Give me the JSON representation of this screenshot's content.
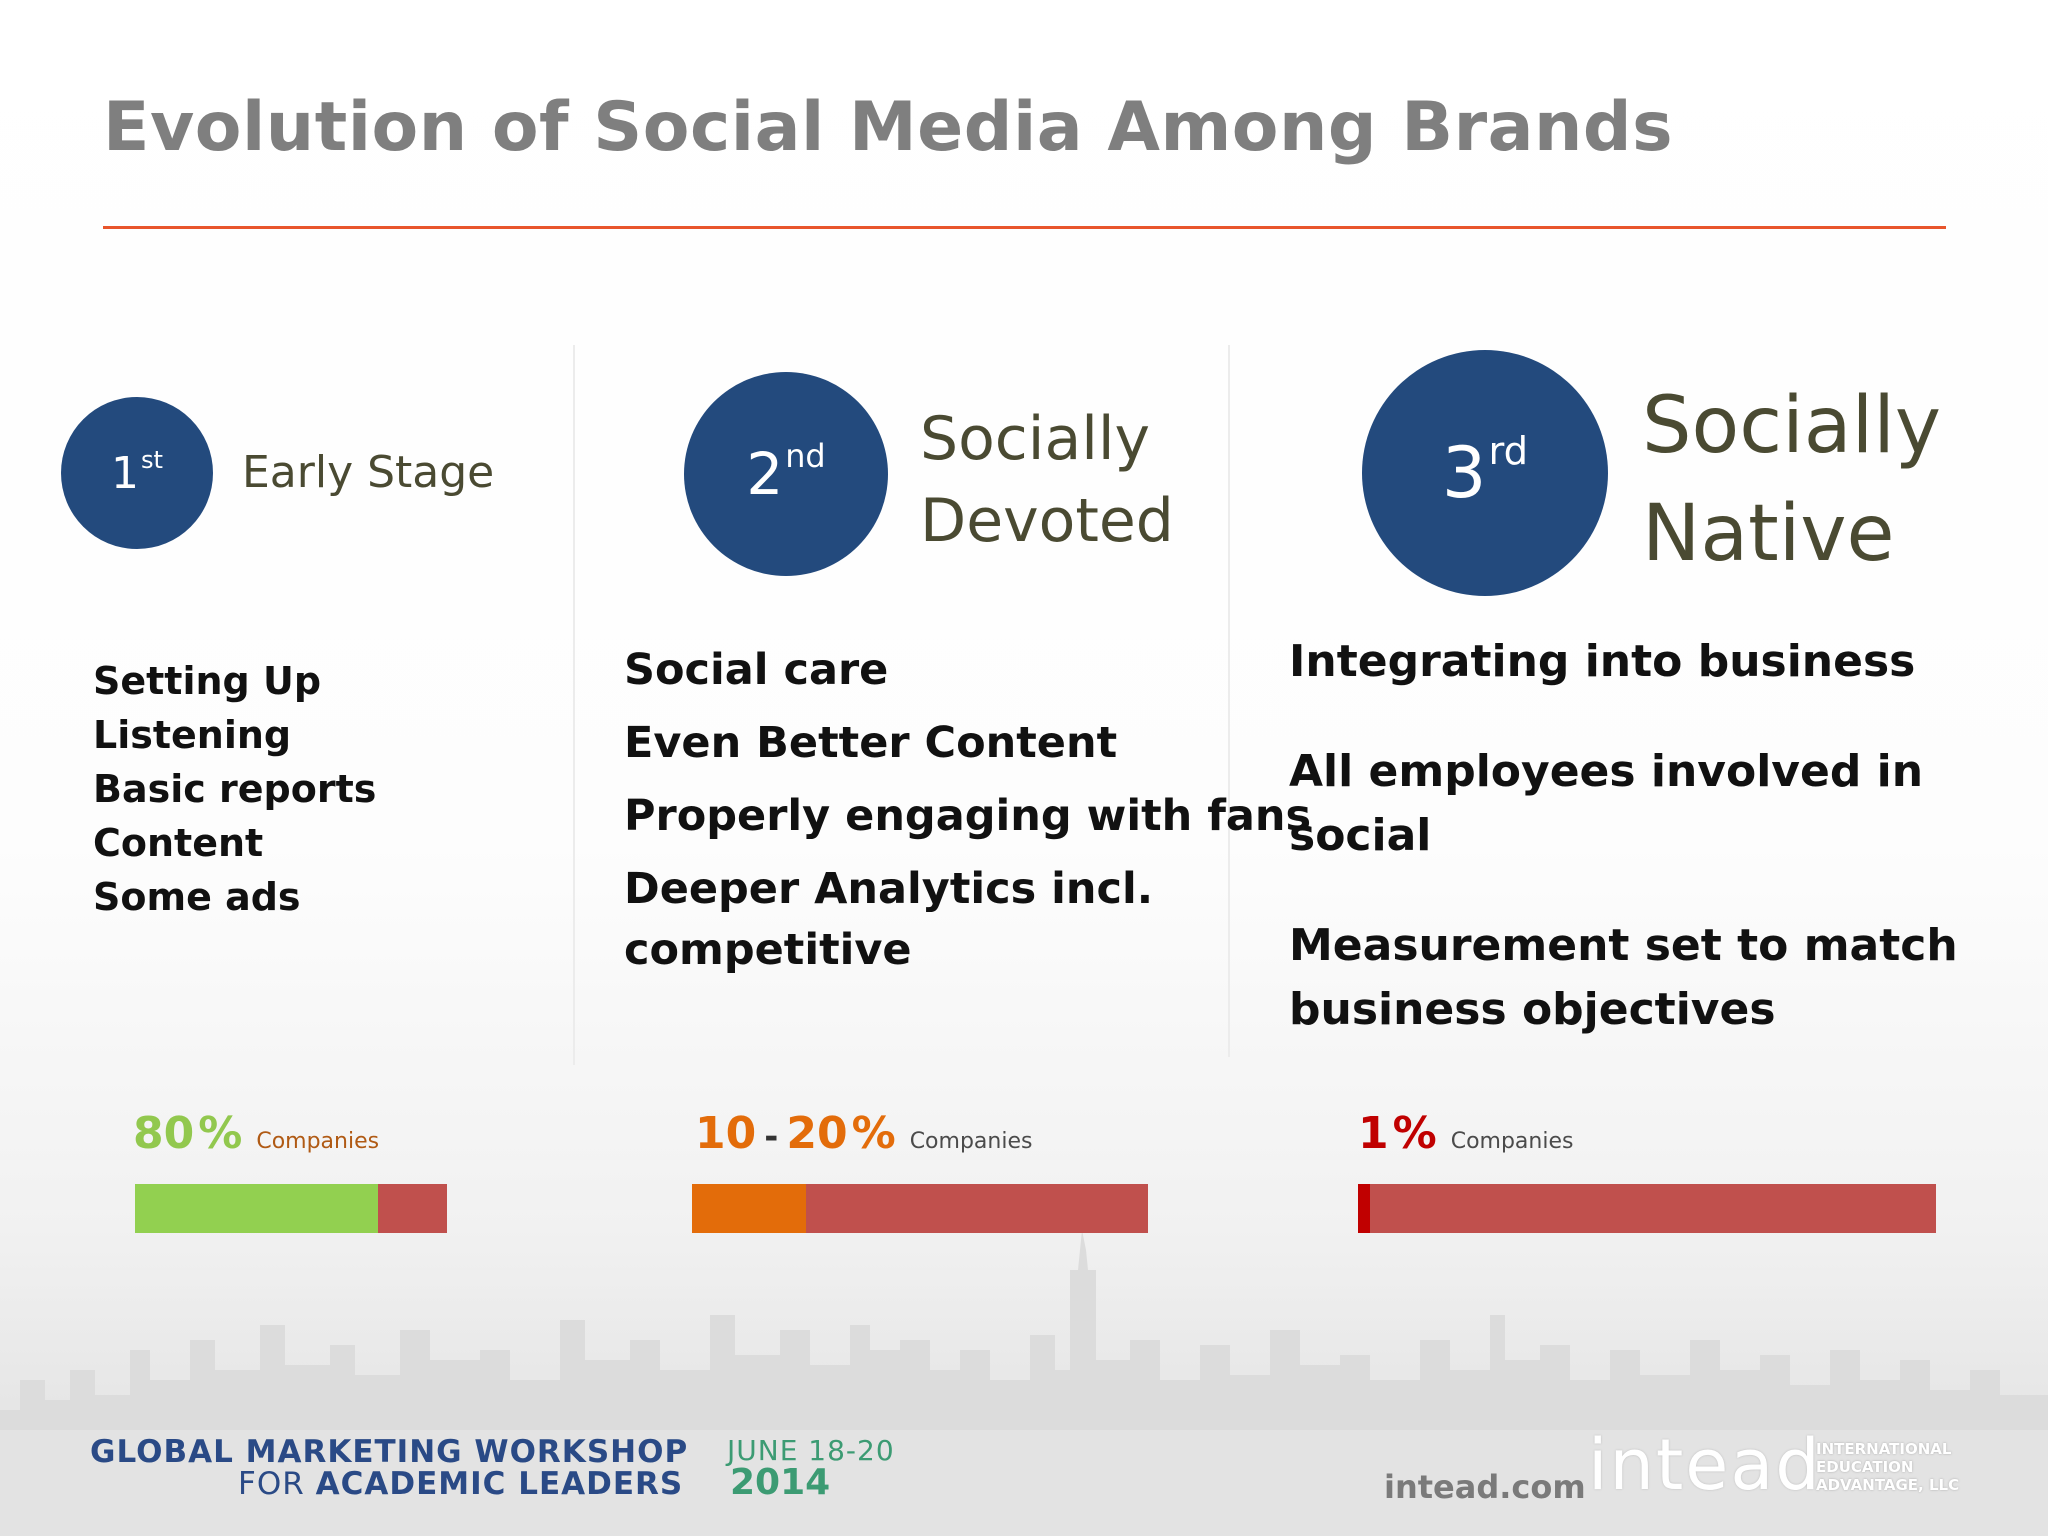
{
  "slide": {
    "title": "Evolution of Social Media Among Brands",
    "accent_color": "#e8552c",
    "circle_color": "#234a7d"
  },
  "stages": [
    {
      "ordinal_number": "1",
      "ordinal_suffix": "st",
      "label_lines": [
        "Early Stage"
      ],
      "bullets": [
        "Setting Up",
        "Listening",
        "Basic reports",
        "Content",
        "Some ads"
      ],
      "pct_main": "80",
      "pct_second": "",
      "pct_symbol": "%",
      "pct_color": "#92c84e",
      "companies_label": "Companies",
      "companies_color": "#b05a14",
      "bar_fill_fraction": 0.78,
      "bar_fill_color": "#92d050",
      "bar_track_color": "#c0504d"
    },
    {
      "ordinal_number": "2",
      "ordinal_suffix": "nd",
      "label_lines": [
        "Socially",
        "Devoted"
      ],
      "bullets": [
        "Social care",
        "Even Better Content",
        "Properly engaging with fans",
        "Deeper Analytics incl.",
        "competitive"
      ],
      "pct_main": "10",
      "pct_dash": "-",
      "pct_second": "20",
      "pct_symbol": "%",
      "pct_color": "#e36c0a",
      "companies_label": "Companies",
      "companies_color": "#4b4b4b",
      "bar_fill_fraction": 0.25,
      "bar_fill_color": "#e36c0a",
      "bar_track_color": "#c0504d"
    },
    {
      "ordinal_number": "3",
      "ordinal_suffix": "rd",
      "label_lines": [
        "Socially",
        "Native"
      ],
      "bullets": [
        "Integrating into business",
        "All employees involved in social",
        "Measurement set to match",
        "business objectives"
      ],
      "pct_main": "1",
      "pct_second": "",
      "pct_symbol": "%",
      "pct_color": "#c00000",
      "companies_label": "Companies",
      "companies_color": "#4b4b4b",
      "bar_fill_fraction": 0.02,
      "bar_fill_color": "#c00000",
      "bar_track_color": "#c0504d"
    }
  ],
  "footer": {
    "workshop_line1": "GLOBAL MARKETING WORKSHOP",
    "workshop_line2_prefix": "FOR ",
    "workshop_line2_main": "ACADEMIC LEADERS",
    "dates": "JUNE 18-20",
    "year": "2014",
    "website": "intead.com",
    "logo_text": "intead",
    "logo_tagline": [
      "INTERNATIONAL",
      "EDUCATION",
      "ADVANTAGE, LLC"
    ]
  }
}
